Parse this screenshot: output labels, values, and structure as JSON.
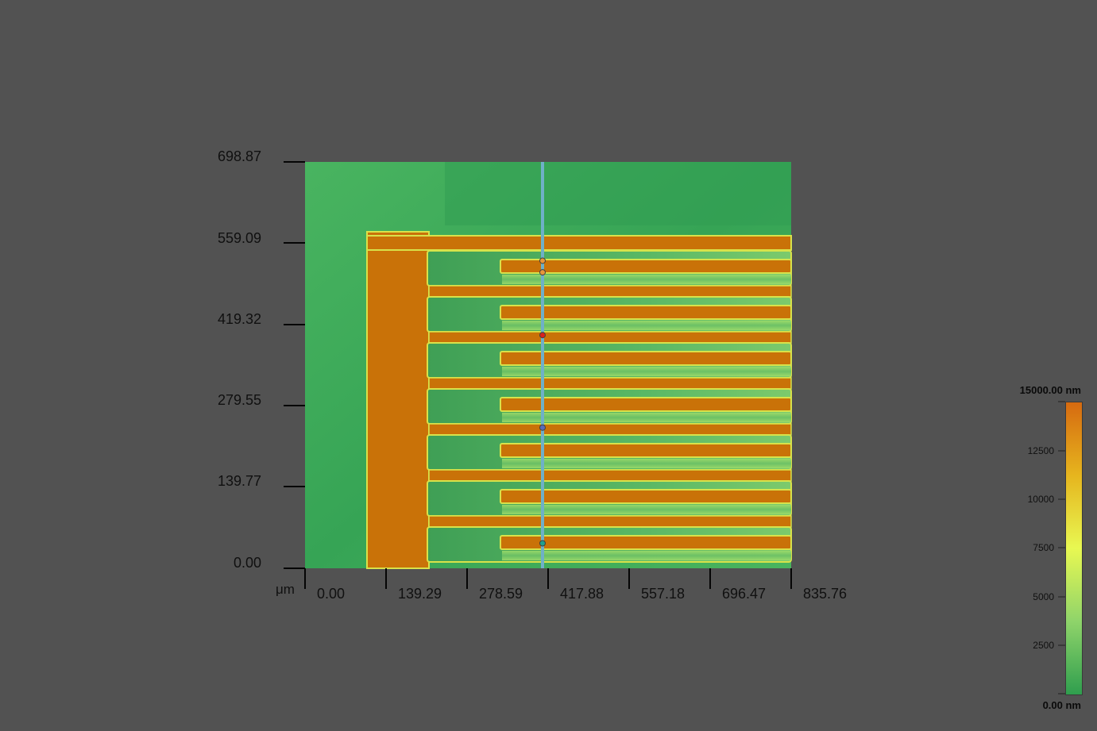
{
  "height_map": {
    "unit": "μm",
    "x_ticks": [
      "0.00",
      "139.29",
      "278.59",
      "417.88",
      "557.18",
      "696.47",
      "835.76"
    ],
    "y_ticks": [
      "0.00",
      "139.77",
      "279.55",
      "419.32",
      "559.09",
      "698.87"
    ],
    "xlim": [
      0,
      835.76
    ],
    "ylim": [
      0,
      698.87
    ],
    "profile_line_x": 417.88,
    "profile_markers": [
      {
        "name": "marker-orange-1",
        "y": 529,
        "color": "#e8963a"
      },
      {
        "name": "marker-orange-2",
        "y": 509,
        "color": "#e8963a"
      },
      {
        "name": "marker-red",
        "y": 401,
        "color": "#d8201c"
      },
      {
        "name": "marker-blue",
        "y": 242,
        "color": "#5a6ab8"
      },
      {
        "name": "marker-teal",
        "y": 43,
        "color": "#1fa090"
      }
    ],
    "colors": {
      "substrate": "#3fa85a",
      "electrode": "#c97208",
      "edge": "#d8e24a",
      "profile_line": "#6fb0c8"
    }
  },
  "color_scale": {
    "max_label": "15000.00 nm",
    "min_label": "0.00 nm",
    "ticks": [
      "12500",
      "10000",
      "7500",
      "5000",
      "2500"
    ],
    "gradient": [
      "#2f9e4e",
      "#8fd46a",
      "#e8f852",
      "#e6b51e",
      "#d66a10"
    ]
  }
}
